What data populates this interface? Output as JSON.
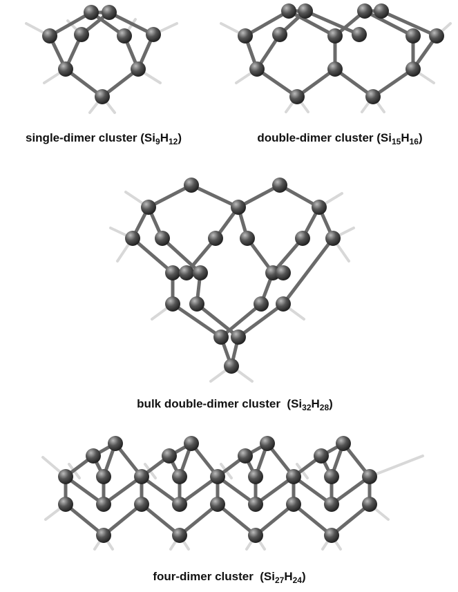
{
  "panels": [
    {
      "caption": [
        "single-dimer cluster (Si",
        "9",
        "H",
        "12",
        ")"
      ]
    },
    {
      "caption": [
        "double-dimer cluster (Si",
        "15",
        "H",
        "16",
        ")"
      ]
    },
    {
      "caption": [
        "bulk double-dimer cluster  (Si",
        "32",
        "H",
        "28",
        ")"
      ]
    },
    {
      "caption": [
        "four-dimer cluster  (Si",
        "27",
        "H",
        "24",
        ")"
      ]
    }
  ]
}
